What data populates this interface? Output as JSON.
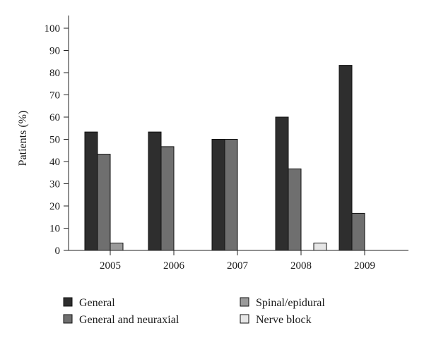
{
  "chart_data": {
    "type": "bar",
    "categories": [
      "2005",
      "2006",
      "2007",
      "2008",
      "2009"
    ],
    "series": [
      {
        "name": "General",
        "color": "#2e2e2e",
        "values": [
          53.3,
          53.3,
          50,
          60,
          83.3
        ]
      },
      {
        "name": "General and neuraxial",
        "color": "#6f6f6f",
        "values": [
          43.3,
          46.7,
          50,
          36.7,
          16.7
        ]
      },
      {
        "name": "Spinal/epidural",
        "color": "#9a9a9a",
        "values": [
          3.3,
          0,
          0,
          0,
          0
        ]
      },
      {
        "name": "Nerve block",
        "color": "#e6e6e6",
        "values": [
          0,
          0,
          0,
          3.3,
          0
        ]
      }
    ],
    "ylabel": "Patients (%)",
    "xlabel": "",
    "ylim": [
      0,
      100
    ],
    "yticks": [
      0,
      10,
      20,
      30,
      40,
      50,
      60,
      70,
      80,
      90,
      100
    ],
    "grid": false,
    "legend_position": "bottom"
  }
}
